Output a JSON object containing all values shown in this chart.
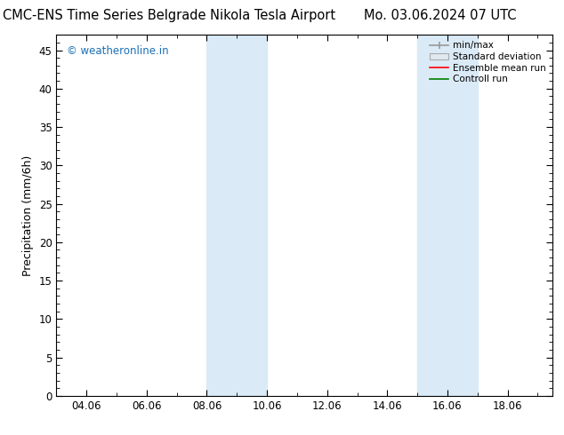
{
  "title_left": "CMC-ENS Time Series Belgrade Nikola Tesla Airport",
  "title_right": "Mo. 03.06.2024 07 UTC",
  "ylabel": "Precipitation (mm/6h)",
  "ylim": [
    0,
    47
  ],
  "yticks": [
    0,
    5,
    10,
    15,
    20,
    25,
    30,
    35,
    40,
    45
  ],
  "xlim_num": [
    3.0,
    19.5
  ],
  "xtick_labels": [
    "04.06",
    "06.06",
    "08.06",
    "10.06",
    "12.06",
    "14.06",
    "16.06",
    "18.06"
  ],
  "xtick_positions": [
    4.0,
    6.0,
    8.0,
    10.0,
    12.0,
    14.0,
    16.0,
    18.0
  ],
  "shaded_regions": [
    {
      "xmin": 8.0,
      "xmax": 9.0
    },
    {
      "xmin": 9.0,
      "xmax": 10.0
    },
    {
      "xmin": 15.0,
      "xmax": 16.0
    },
    {
      "xmin": 16.0,
      "xmax": 17.0
    }
  ],
  "shade_color": "#daeaf7",
  "background_color": "#ffffff",
  "plot_bg_color": "#ffffff",
  "watermark": "© weatheronline.in",
  "watermark_color": "#1a6eb5",
  "legend_labels": [
    "min/max",
    "Standard deviation",
    "Ensemble mean run",
    "Controll run"
  ],
  "legend_colors": [
    "#999999",
    "#cccccc",
    "#ff0000",
    "#008000"
  ],
  "title_fontsize": 10.5,
  "axis_label_fontsize": 9,
  "tick_fontsize": 8.5,
  "watermark_fontsize": 8.5
}
